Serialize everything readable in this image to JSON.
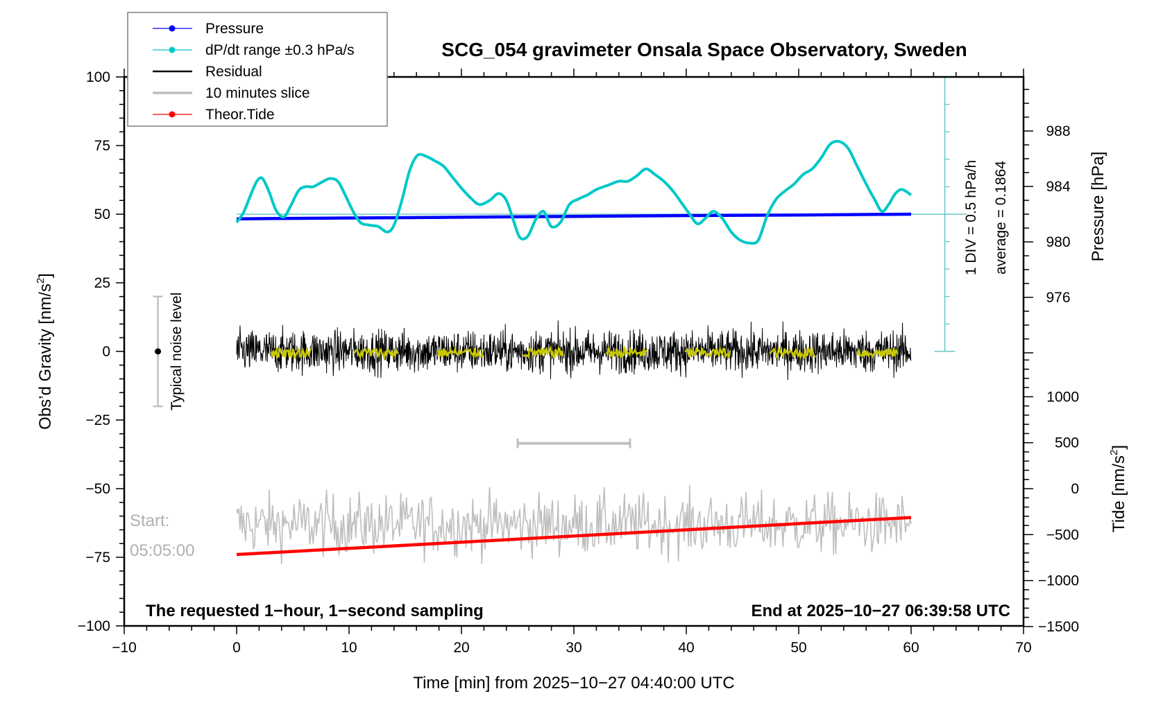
{
  "chart_data": {
    "type": "line",
    "title": "SCG_054 gravimeter Onsala Space Observatory, Sweden",
    "xlabel": "Time [min] from 2025−10−27 04:40:00 UTC",
    "ylabel": "Obs'd Gravity [nm/s²]",
    "ylabel_main": "Obs’d Gravity [nm/s",
    "ylabel_sup": "2",
    "ylabel_end": "]",
    "xlim": [
      -10,
      70
    ],
    "ylim": [
      -100,
      100
    ],
    "x_ticks": [
      -10,
      0,
      10,
      20,
      30,
      40,
      50,
      60,
      70
    ],
    "x_tick_labels": [
      "−10",
      "0",
      "10",
      "20",
      "30",
      "40",
      "50",
      "60",
      "70"
    ],
    "y_ticks": [
      100,
      75,
      50,
      25,
      0,
      -25,
      -50,
      -75,
      -100
    ],
    "y_tick_labels": [
      "100",
      "75",
      "50",
      "25",
      "0",
      "−25",
      "−50",
      "−75",
      "−100"
    ],
    "right_axis_pressure": {
      "label": "Pressure [hPa]",
      "ticks": [
        988,
        984,
        980,
        976
      ],
      "tick_labels": [
        "988",
        "984",
        "980",
        "976"
      ],
      "ref_value": 982.0,
      "ref_gravity": 50,
      "hpa_per_gravity_unit": 0.202
    },
    "right_axis_tide": {
      "label_main": "Tide [nm/s",
      "label_sup": "2",
      "label_end": "]",
      "ticks": [
        1000,
        500,
        0,
        -500,
        -1000,
        -1500
      ],
      "tick_labels": [
        "1000",
        "500",
        "0",
        "−500",
        "−1000",
        "−1500"
      ],
      "range": [
        -1500,
        1300
      ]
    },
    "legend": {
      "position": "top-left",
      "entries": [
        {
          "label": "Pressure",
          "color": "#0000ff",
          "marker": "dot"
        },
        {
          "label": "dP/dt range ±0.3 hPa/s",
          "color": "#00c8c8",
          "marker": "dot"
        },
        {
          "label": "Residual",
          "color": "#000000",
          "marker": "none"
        },
        {
          "label": "10 minutes slice",
          "color": "#bebebe",
          "marker": "none"
        },
        {
          "label": "Theor.Tide",
          "color": "#ff0000",
          "marker": "dot"
        }
      ]
    },
    "series": [
      {
        "name": "Pressure",
        "color": "#0000ff",
        "axis": "gravity-equivalent",
        "x": [
          0,
          10,
          20,
          30,
          40,
          50,
          60
        ],
        "y": [
          48.3,
          48.6,
          48.9,
          49.2,
          49.5,
          49.7,
          50.0
        ]
      },
      {
        "name": "dP/dt",
        "color": "#00c8c8",
        "x": [
          0,
          0.6,
          1.2,
          1.8,
          2.3,
          2.9,
          3.5,
          4.2,
          4.8,
          5.5,
          6.1,
          6.8,
          7.5,
          8.3,
          9.0,
          9.6,
          10.3,
          11.0,
          11.8,
          12.6,
          13.4,
          14.0,
          14.7,
          15.4,
          16.1,
          16.9,
          17.6,
          18.4,
          19.2,
          20.0,
          20.8,
          21.6,
          22.5,
          23.3,
          24.0,
          24.6,
          25.2,
          25.9,
          26.6,
          27.3,
          28.0,
          28.8,
          29.6,
          30.4,
          31.2,
          32.0,
          33.0,
          34.0,
          34.8,
          35.6,
          36.4,
          37.2,
          38.0,
          38.8,
          39.6,
          40.3,
          41.0,
          41.7,
          42.4,
          43.2,
          44.0,
          44.8,
          45.6,
          46.4,
          47.2,
          48.0,
          48.8,
          49.6,
          50.4,
          51.2,
          52.0,
          52.8,
          53.6,
          54.4,
          55.2,
          56.0,
          56.8,
          57.4,
          58.0,
          58.6,
          59.2,
          60.0
        ],
        "y": [
          47.0,
          50.5,
          56.5,
          62.0,
          63.0,
          58.0,
          51.5,
          49.0,
          53.0,
          58.5,
          60.0,
          60.0,
          61.5,
          63.0,
          62.0,
          57.5,
          51.5,
          47.0,
          46.0,
          45.5,
          43.5,
          46.0,
          55.0,
          66.0,
          71.5,
          71.0,
          69.5,
          67.5,
          63.5,
          59.5,
          56.0,
          53.5,
          55.0,
          57.5,
          55.0,
          48.0,
          41.5,
          42.0,
          48.0,
          51.0,
          45.5,
          47.0,
          53.5,
          55.5,
          57.0,
          59.0,
          60.5,
          62.0,
          62.0,
          64.0,
          66.5,
          64.5,
          62.0,
          58.5,
          54.0,
          50.0,
          46.5,
          48.5,
          51.0,
          48.5,
          43.5,
          40.5,
          39.5,
          40.5,
          49.5,
          55.5,
          58.5,
          61.0,
          64.5,
          66.5,
          70.5,
          75.5,
          76.5,
          74.0,
          67.5,
          61.0,
          55.0,
          51.0,
          53.5,
          57.5,
          59.0,
          57.0
        ]
      },
      {
        "name": "Residual",
        "color": "#000000",
        "x_range": [
          0,
          60
        ],
        "center": 0,
        "noise_amplitude": 6,
        "peak_range": [
          -17,
          17
        ]
      },
      {
        "name": "10 minutes slice",
        "color": "#bebebe",
        "x_range": [
          0,
          60
        ],
        "center": -63,
        "noise_amplitude": 8,
        "peak_range": [
          -78,
          -47
        ]
      },
      {
        "name": "Theor.Tide",
        "color": "#ff0000",
        "x": [
          0,
          60
        ],
        "y": [
          -74,
          -60.5
        ],
        "tide_units": [
          -710,
          -305
        ]
      }
    ],
    "slice_segments": {
      "color": "#c8c800",
      "ranges": [
        [
          3.1,
          6.6
        ],
        [
          10.5,
          14.4
        ],
        [
          17.9,
          22.0
        ],
        [
          25.5,
          29.1
        ],
        [
          32.9,
          36.5
        ],
        [
          39.9,
          43.9
        ],
        [
          47.4,
          51.5
        ],
        [
          55.2,
          58.8
        ]
      ],
      "center": -0.5
    },
    "noise_bar": {
      "label": "Typical noise level",
      "x": -7,
      "center": 0,
      "range": [
        -20,
        20
      ]
    },
    "slice_scale_bar": {
      "x_range": [
        25,
        35
      ],
      "y": -33.5
    },
    "dpdt_scale": {
      "label_div": "1 DIV = 0.5 hPa/h",
      "label_avg": "average = 0.1864",
      "baseline_gravity": 50,
      "x": 63,
      "range": [
        0,
        100
      ]
    },
    "annotations": {
      "start_label": "Start:",
      "start_time": "05:05:00",
      "bottom_left": "The requested 1−hour, 1−second sampling",
      "bottom_right": "End at 2025−10−27 06:39:58 UTC"
    }
  }
}
